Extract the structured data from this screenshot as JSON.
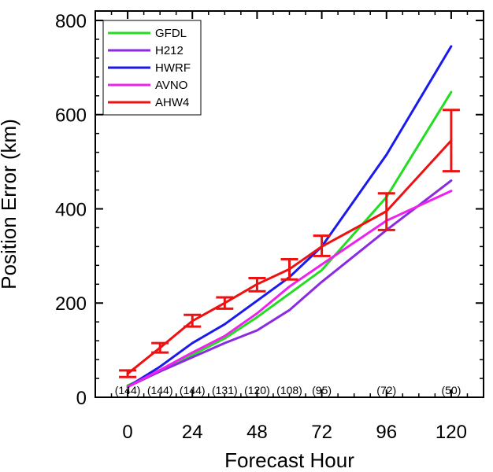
{
  "chart_data": {
    "type": "line",
    "title": "",
    "xlabel": "Forecast Hour",
    "ylabel": "Position Error (km)",
    "xlim": [
      -12,
      132
    ],
    "ylim": [
      0,
      820
    ],
    "x_ticks": [
      0,
      24,
      48,
      72,
      96,
      120
    ],
    "y_ticks": [
      0,
      200,
      400,
      600,
      800
    ],
    "x_tick_labels": [
      "0",
      "24",
      "48",
      "72",
      "96",
      "120"
    ],
    "y_tick_labels": [
      "0",
      "200",
      "400",
      "600",
      "800"
    ],
    "grid": false,
    "legend_position": "top-left",
    "series": [
      {
        "name": "GFDL",
        "color": "#22dd22",
        "x": [
          0,
          12,
          24,
          36,
          48,
          60,
          72,
          96,
          120
        ],
        "y": [
          25,
          55,
          90,
          125,
          170,
          220,
          270,
          425,
          648
        ]
      },
      {
        "name": "H212",
        "color": "#8a2be2",
        "x": [
          0,
          12,
          24,
          36,
          48,
          60,
          72,
          96,
          120
        ],
        "y": [
          22,
          55,
          85,
          115,
          142,
          185,
          245,
          355,
          460
        ]
      },
      {
        "name": "HWRF",
        "color": "#1a1aee",
        "x": [
          0,
          12,
          24,
          36,
          48,
          60,
          72,
          96,
          120
        ],
        "y": [
          22,
          65,
          115,
          155,
          205,
          255,
          320,
          515,
          745
        ]
      },
      {
        "name": "AVNO",
        "color": "#ee22ee",
        "x": [
          0,
          12,
          24,
          36,
          48,
          60,
          72,
          96,
          120
        ],
        "y": [
          22,
          58,
          95,
          130,
          178,
          235,
          282,
          375,
          438
        ]
      },
      {
        "name": "AHW4",
        "color": "#ee1111",
        "x": [
          0,
          12,
          24,
          36,
          48,
          60,
          72,
          96,
          120
        ],
        "y": [
          50,
          105,
          162,
          200,
          240,
          272,
          320,
          395,
          545
        ],
        "error_low": [
          43,
          95,
          150,
          188,
          225,
          250,
          300,
          355,
          480
        ],
        "error_high": [
          57,
          115,
          175,
          212,
          253,
          293,
          343,
          433,
          610
        ]
      }
    ],
    "sample_counts": [
      {
        "x": 0,
        "label": "(144)"
      },
      {
        "x": 12,
        "label": "(144)"
      },
      {
        "x": 24,
        "label": "(144)"
      },
      {
        "x": 36,
        "label": "(131)"
      },
      {
        "x": 48,
        "label": "(120)"
      },
      {
        "x": 60,
        "label": "(108)"
      },
      {
        "x": 72,
        "label": "(95)"
      },
      {
        "x": 96,
        "label": "(72)"
      },
      {
        "x": 120,
        "label": "(50)"
      }
    ]
  }
}
